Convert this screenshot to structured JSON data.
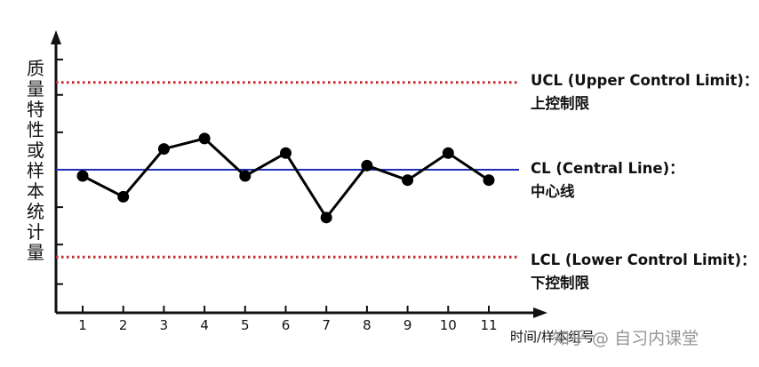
{
  "chart_data": {
    "type": "line",
    "ylabel": "质量特性或样本统计量",
    "xlabel": "时间/样本组号",
    "categories": [
      "1",
      "2",
      "3",
      "4",
      "5",
      "6",
      "7",
      "8",
      "9",
      "10",
      "11"
    ],
    "series": [
      {
        "values": [
          -0.3,
          -1.3,
          1.0,
          1.5,
          -0.3,
          0.8,
          -2.3,
          0.2,
          -0.5,
          0.8,
          -0.5
        ],
        "color": "#000000"
      }
    ],
    "control_lines": {
      "ucl": {
        "value": 4.2,
        "label_line1": "UCL (Upper Control Limit)：",
        "label_line2": "上控制限",
        "color": "#c0282d",
        "style": "dotted"
      },
      "cl": {
        "value": 0.0,
        "label_line1": "CL (Central Line)：",
        "label_line2": "中心线",
        "color": "#1f2fb5",
        "style": "solid"
      },
      "lcl": {
        "value": -4.2,
        "label_line1": "LCL (Lower Control Limit)：",
        "label_line2": "下控制限",
        "color": "#c0282d",
        "style": "dotted"
      }
    },
    "ylim": [
      -7.2,
      6.5
    ],
    "y_ticks": [
      -5.5,
      -3.6,
      -1.8,
      0.0,
      1.8,
      3.6,
      5.3
    ],
    "show_y_tick_labels": false,
    "grid": false,
    "legend": "none"
  },
  "watermark": "知乎 @ 自习内课堂"
}
